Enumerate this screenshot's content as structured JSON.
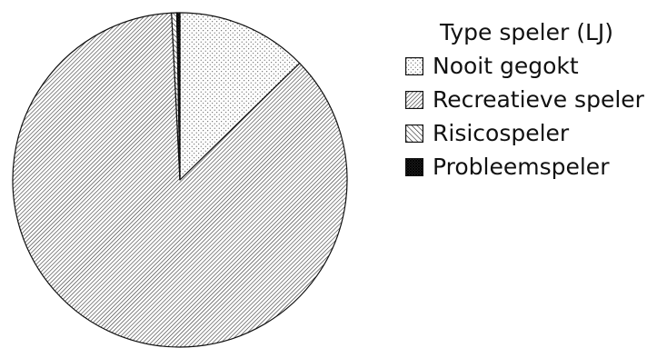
{
  "chart_data": {
    "type": "pie",
    "title": "",
    "legend_title": "Type speler (LJ)",
    "legend_position": "right",
    "slices": [
      {
        "label": "Nooit gegokt",
        "value": 12.7,
        "pattern": "dots"
      },
      {
        "label": "Recreatieve speler",
        "value": 86.5,
        "pattern": "hatch-dense"
      },
      {
        "label": "Risicospeler",
        "value": 0.5,
        "pattern": "hatch-diag"
      },
      {
        "label": "Probleemspeler",
        "value": 0.3,
        "pattern": "crosshatch-dark"
      }
    ]
  }
}
